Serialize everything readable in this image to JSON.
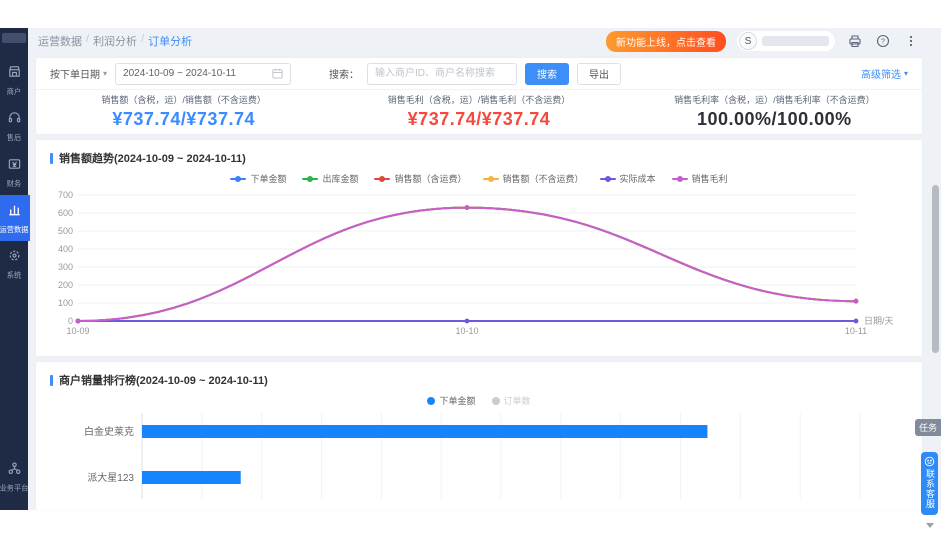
{
  "colors": {
    "accent_blue": "#3e8ef7",
    "kpi_blue": "#3a8bff",
    "kpi_red": "#f4493c",
    "kpi_dark": "#2f2f38",
    "bar_blue": "#1684fc",
    "sidebar_bg": "#1f2a44",
    "sidebar_active": "#2e6bef",
    "promo_gradient": [
      "#ff9a2e",
      "#ff4f1f"
    ]
  },
  "sidebar": {
    "items": [
      {
        "name": "sidebar-item-merchant",
        "icon": "storefront-icon",
        "label": "商户",
        "active": false
      },
      {
        "name": "sidebar-item-aftersales",
        "icon": "headset-icon",
        "label": "售后",
        "active": false
      },
      {
        "name": "sidebar-item-finance",
        "icon": "wallet-icon",
        "label": "财务",
        "active": false
      },
      {
        "name": "sidebar-item-operations-data",
        "icon": "bar-chart-icon",
        "label": "运营数据",
        "active": true
      },
      {
        "name": "sidebar-item-system",
        "icon": "gear-icon",
        "label": "系统",
        "active": false
      }
    ],
    "bottom_item": {
      "name": "sidebar-item-business-platform",
      "icon": "org-icon",
      "label": "业务平台"
    }
  },
  "header": {
    "breadcrumb": [
      "运营数据",
      "利润分析",
      "订单分析"
    ],
    "promo_badge": "新功能上线，点击查看",
    "avatar_initial": "S",
    "advanced_filter_label": "高级筛选"
  },
  "filters": {
    "date_type_label": "按下单日期",
    "date_range_value": "2024-10-09 ~ 2024-10-11",
    "search_label": "搜索：",
    "search_placeholder": "输入商户ID、商户名称搜索",
    "search_button": "搜索",
    "export_button": "导出"
  },
  "kpis": [
    {
      "label": "销售额（含税，运）/销售额（不含运费）",
      "value": "¥737.74/¥737.74",
      "color": "#3a8bff"
    },
    {
      "label": "销售毛利（含税，运）/销售毛利（不含运费）",
      "value": "¥737.74/¥737.74",
      "color": "#f4493c"
    },
    {
      "label": "销售毛利率（含税，运）/销售毛利率（不含运费）",
      "value": "100.00%/100.00%",
      "color": "#2f2f38"
    }
  ],
  "chart_data": [
    {
      "type": "line",
      "title": "销售额趋势(2024-10-09 ~ 2024-10-11)",
      "x": [
        "10-09",
        "10-10",
        "10-11"
      ],
      "xlabel": "日期/天",
      "ylim": [
        0,
        700
      ],
      "ytick_step": 100,
      "grid": true,
      "legend_position": "top",
      "series": [
        {
          "name": "下单金额",
          "color": "#3b82f6",
          "values": [
            0,
            630,
            110
          ]
        },
        {
          "name": "出库金额",
          "color": "#2cb34a",
          "values": [
            0,
            630,
            110
          ]
        },
        {
          "name": "销售额（含运费）",
          "color": "#e0483e",
          "values": [
            0,
            630,
            110
          ]
        },
        {
          "name": "销售额（不含运费）",
          "color": "#f3b43c",
          "values": [
            0,
            630,
            110
          ]
        },
        {
          "name": "实际成本",
          "color": "#6a5bdc",
          "values": [
            0,
            0,
            0
          ]
        },
        {
          "name": "销售毛利",
          "color": "#c45fd0",
          "values": [
            0,
            630,
            110
          ]
        }
      ]
    },
    {
      "type": "bar",
      "title": "商户销量排行榜(2024-10-09 ~ 2024-10-11)",
      "orientation": "horizontal",
      "categories": [
        "白金史莱克",
        "派大星123"
      ],
      "xlim": [
        0,
        800
      ],
      "grid": true,
      "legend_position": "top",
      "series": [
        {
          "name": "下单金额",
          "color": "#1684fc",
          "values": [
            630,
            110
          ],
          "disabled": false
        },
        {
          "name": "订单数",
          "color": "#c8ccd4",
          "values": null,
          "disabled": true
        }
      ]
    }
  ],
  "floating": {
    "task_tab_label": "任务",
    "service_button_label": "联系客服"
  }
}
